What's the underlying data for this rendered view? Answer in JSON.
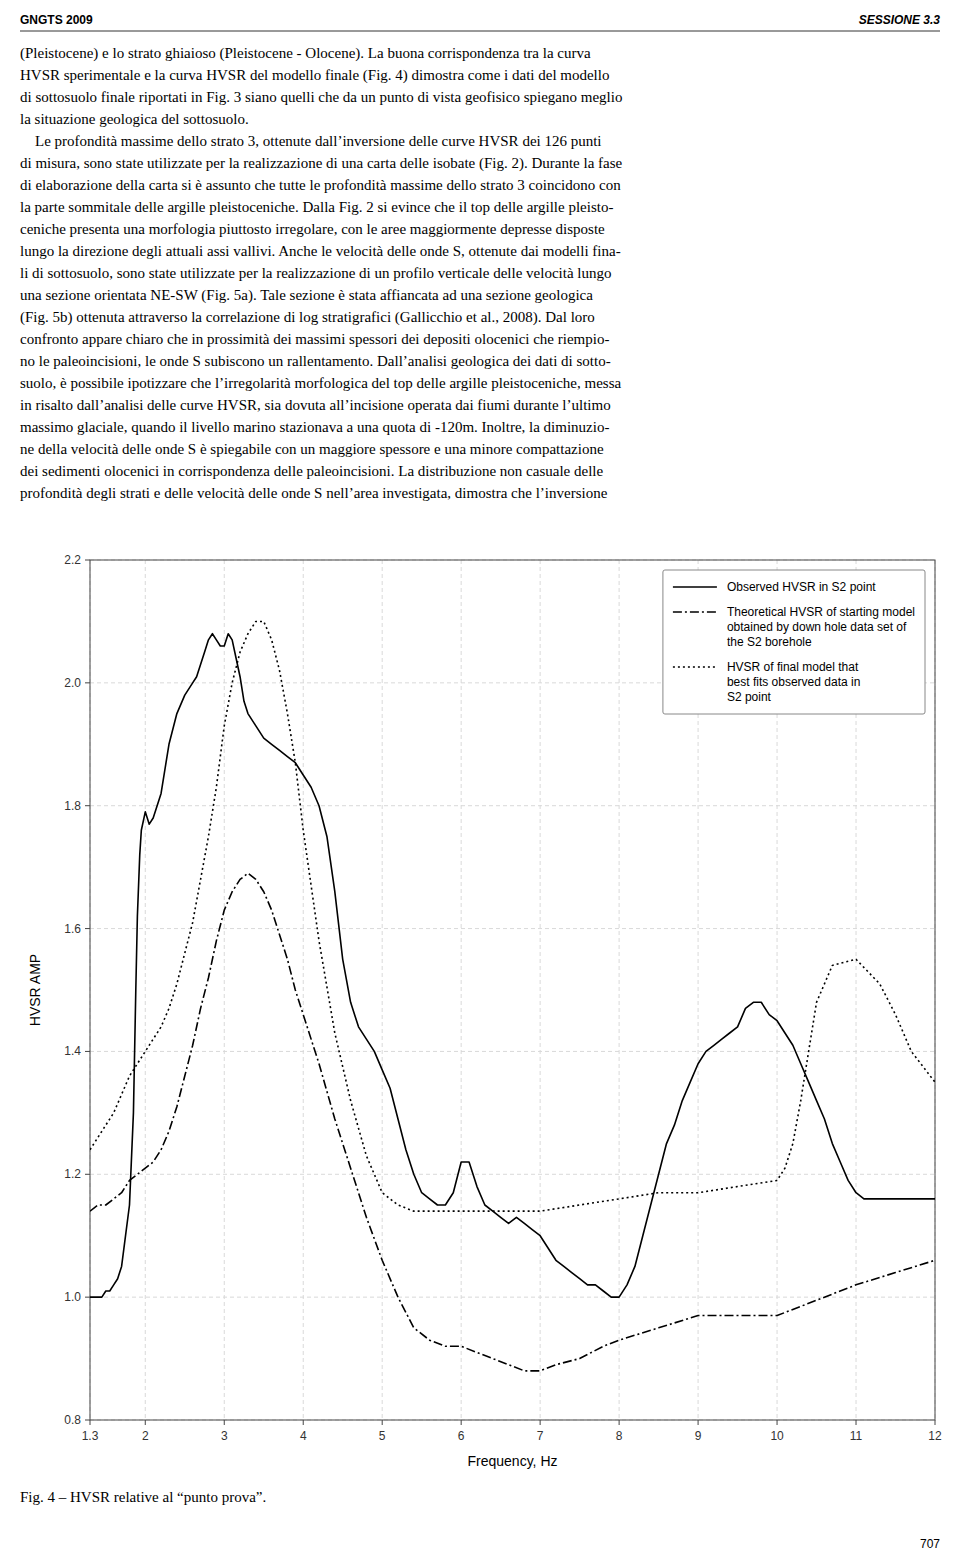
{
  "header": [
    "GNGTS 2009",
    "SESSIONE 3.3"
  ],
  "text_lines": [
    "(Pleistocene) e lo strato ghiaioso (Pleistocene - Olocene). La buona corrispondenza tra la curva",
    "HVSR sperimentale e la curva HVSR del modello finale (Fig. 4) dimostra come i dati del modello",
    "di sottosuolo finale riportati in Fig. 3 siano quelli che da un punto di vista geofisico spiegano meglio",
    "la situazione geologica del sottosuolo.",
    "    Le profondità massime dello strato 3, ottenute dall’inversione delle curve HVSR dei 126 punti",
    "di misura, sono state utilizzate per la realizzazione di una carta delle isobate (Fig. 2). Durante la fase",
    "di elaborazione della carta si è assunto che tutte le profondità massime dello strato 3 coincidono con",
    "la parte sommitale delle argille pleistoceniche. Dalla Fig. 2 si evince che il top delle argille pleisto-",
    "ceniche presenta una morfologia piuttosto irregolare, con le aree maggiormente depresse disposte",
    "lungo la direzione degli attuali assi vallivi. Anche le velocità delle onde S, ottenute dai modelli fina-",
    "li di sottosuolo, sono state utilizzate per la realizzazione di un profilo verticale delle velocità lungo",
    "una sezione orientata NE-SW (Fig. 5a). Tale sezione è stata affiancata ad una sezione geologica",
    "(Fig. 5b) ottenuta attraverso la correlazione di log stratigrafici (Gallicchio et al., 2008). Dal loro",
    "confronto appare chiaro che in prossimità dei massimi spessori dei depositi olocenici che riempio-",
    "no le paleoincisioni, le onde S subiscono un rallentamento. Dall’analisi geologica dei dati di sotto-",
    "suolo, è possibile ipotizzare che l’irregolarità morfologica del top delle argille pleistoceniche, messa",
    "in risalto dall’analisi delle curve HVSR, sia dovuta all’incisione operata dai fiumi durante l’ultimo",
    "massimo glaciale, quando il livello marino stazionava a una quota di -120m. Inoltre, la diminuzio-",
    "ne della velocità delle onde S è spiegabile con un maggiore spessore e una minore compattazione",
    "dei sedimenti olocenici in corrispondenza delle paleoincisioni. La distribuzione non casuale delle",
    "profondità degli strati e delle velocità delle onde S nell’area investigata, dimostra che l’inversione"
  ],
  "caption": "Fig. 4 – HVSR relative al “punto prova”.",
  "page_number": "707",
  "chart_data": {
    "type": "line",
    "xlabel": "Frequency, Hz",
    "ylabel": "HVSR AMP",
    "xlim": [
      1.3,
      12
    ],
    "ylim": [
      0.8,
      2.2
    ],
    "xticks": [
      1.3,
      2,
      3,
      4,
      5,
      6,
      7,
      8,
      9,
      10,
      11,
      12
    ],
    "yticks": [
      0.8,
      {
        "value": 1.0,
        "label": "1.0"
      },
      1.2,
      1.4,
      1.6,
      1.8,
      {
        "value": 2.0,
        "label": "2.0"
      },
      2.2
    ],
    "grid": true,
    "legend": "upper right",
    "series": [
      {
        "name": "Observed HVSR in S2 point",
        "color": "#000000",
        "line_style": "solid",
        "x": [
          1.3,
          1.35,
          1.4,
          1.45,
          1.5,
          1.55,
          1.6,
          1.65,
          1.7,
          1.75,
          1.8,
          1.85,
          1.88,
          1.9,
          1.93,
          1.95,
          2.0,
          2.05,
          2.1,
          2.15,
          2.2,
          2.3,
          2.4,
          2.5,
          2.6,
          2.65,
          2.7,
          2.75,
          2.8,
          2.85,
          2.9,
          2.95,
          3.0,
          3.05,
          3.1,
          3.15,
          3.2,
          3.25,
          3.3,
          3.4,
          3.5,
          3.6,
          3.7,
          3.8,
          3.9,
          4.0,
          4.1,
          4.2,
          4.3,
          4.4,
          4.5,
          4.6,
          4.7,
          4.8,
          4.9,
          5.0,
          5.1,
          5.2,
          5.3,
          5.4,
          5.5,
          5.6,
          5.7,
          5.8,
          5.9,
          6.0,
          6.1,
          6.2,
          6.3,
          6.4,
          6.5,
          6.6,
          6.7,
          6.8,
          6.9,
          7.0,
          7.1,
          7.2,
          7.3,
          7.4,
          7.5,
          7.6,
          7.7,
          7.8,
          7.9,
          8.0,
          8.1,
          8.2,
          8.3,
          8.4,
          8.5,
          8.6,
          8.7,
          8.8,
          8.9,
          9.0,
          9.1,
          9.2,
          9.3,
          9.4,
          9.5,
          9.6,
          9.7,
          9.8,
          9.9,
          10.0,
          10.1,
          10.2,
          10.3,
          10.4,
          10.5,
          10.6,
          10.7,
          10.8,
          10.9,
          11.0,
          11.1,
          11.2,
          11.3,
          11.5,
          11.7,
          12.0
        ],
        "values": [
          1.0,
          1.0,
          1.0,
          1.0,
          1.01,
          1.01,
          1.02,
          1.03,
          1.05,
          1.1,
          1.15,
          1.3,
          1.5,
          1.62,
          1.72,
          1.76,
          1.79,
          1.77,
          1.78,
          1.8,
          1.82,
          1.9,
          1.95,
          1.98,
          2.0,
          2.01,
          2.03,
          2.05,
          2.07,
          2.08,
          2.07,
          2.06,
          2.06,
          2.08,
          2.07,
          2.04,
          2.01,
          1.97,
          1.95,
          1.93,
          1.91,
          1.9,
          1.89,
          1.88,
          1.87,
          1.85,
          1.83,
          1.8,
          1.75,
          1.66,
          1.55,
          1.48,
          1.44,
          1.42,
          1.4,
          1.37,
          1.34,
          1.29,
          1.24,
          1.2,
          1.17,
          1.16,
          1.15,
          1.15,
          1.17,
          1.22,
          1.22,
          1.18,
          1.15,
          1.14,
          1.13,
          1.12,
          1.13,
          1.12,
          1.11,
          1.1,
          1.08,
          1.06,
          1.05,
          1.04,
          1.03,
          1.02,
          1.02,
          1.01,
          1.0,
          1.0,
          1.02,
          1.05,
          1.1,
          1.15,
          1.2,
          1.25,
          1.28,
          1.32,
          1.35,
          1.38,
          1.4,
          1.41,
          1.42,
          1.43,
          1.44,
          1.47,
          1.48,
          1.48,
          1.46,
          1.45,
          1.43,
          1.41,
          1.38,
          1.35,
          1.32,
          1.29,
          1.25,
          1.22,
          1.19,
          1.17,
          1.16,
          1.16,
          1.16,
          1.16,
          1.16,
          1.16
        ]
      },
      {
        "name": "Theoretical HVSR of starting model\nobtained by down hole data set of\nthe S2 borehole",
        "color": "#000000",
        "line_style": "dashdot",
        "x": [
          1.3,
          1.4,
          1.5,
          1.6,
          1.7,
          1.8,
          1.9,
          2.0,
          2.1,
          2.2,
          2.3,
          2.4,
          2.5,
          2.6,
          2.7,
          2.8,
          2.9,
          3.0,
          3.1,
          3.2,
          3.3,
          3.4,
          3.5,
          3.6,
          3.7,
          3.8,
          3.9,
          4.0,
          4.2,
          4.4,
          4.6,
          4.8,
          5.0,
          5.2,
          5.4,
          5.6,
          5.8,
          6.0,
          6.2,
          6.4,
          6.6,
          6.8,
          7.0,
          7.2,
          7.5,
          7.8,
          8.0,
          8.5,
          9.0,
          9.5,
          9.8,
          10.0,
          10.2,
          10.4,
          10.6,
          10.8,
          11.0,
          11.5,
          12.0
        ],
        "values": [
          1.14,
          1.15,
          1.15,
          1.16,
          1.17,
          1.19,
          1.2,
          1.21,
          1.22,
          1.24,
          1.27,
          1.31,
          1.36,
          1.41,
          1.47,
          1.52,
          1.58,
          1.63,
          1.66,
          1.68,
          1.69,
          1.68,
          1.66,
          1.63,
          1.59,
          1.55,
          1.5,
          1.46,
          1.38,
          1.29,
          1.21,
          1.13,
          1.06,
          1.0,
          0.95,
          0.93,
          0.92,
          0.92,
          0.91,
          0.9,
          0.89,
          0.88,
          0.88,
          0.89,
          0.9,
          0.92,
          0.93,
          0.95,
          0.97,
          0.97,
          0.97,
          0.97,
          0.98,
          0.99,
          1.0,
          1.01,
          1.02,
          1.04,
          1.06
        ]
      },
      {
        "name": "HVSR of final model that\nbest fits observed data in\nS2 point",
        "color": "#000000",
        "line_style": "dotted",
        "x": [
          1.3,
          1.4,
          1.5,
          1.6,
          1.7,
          1.8,
          1.9,
          2.0,
          2.1,
          2.2,
          2.3,
          2.4,
          2.5,
          2.6,
          2.7,
          2.8,
          2.9,
          3.0,
          3.1,
          3.2,
          3.3,
          3.4,
          3.5,
          3.6,
          3.7,
          3.8,
          3.9,
          4.0,
          4.2,
          4.4,
          4.6,
          4.8,
          5.0,
          5.2,
          5.4,
          5.6,
          5.8,
          6.0,
          6.5,
          7.0,
          7.5,
          8.0,
          8.5,
          9.0,
          9.5,
          10.0,
          10.1,
          10.2,
          10.3,
          10.4,
          10.5,
          10.7,
          11.0,
          11.3,
          11.5,
          11.7,
          12.0
        ],
        "values": [
          1.24,
          1.26,
          1.28,
          1.3,
          1.33,
          1.36,
          1.38,
          1.4,
          1.42,
          1.44,
          1.47,
          1.51,
          1.56,
          1.61,
          1.68,
          1.75,
          1.83,
          1.93,
          2.0,
          2.05,
          2.08,
          2.1,
          2.1,
          2.07,
          2.02,
          1.95,
          1.87,
          1.76,
          1.58,
          1.43,
          1.32,
          1.23,
          1.17,
          1.15,
          1.14,
          1.14,
          1.14,
          1.14,
          1.14,
          1.14,
          1.15,
          1.16,
          1.17,
          1.17,
          1.18,
          1.19,
          1.21,
          1.25,
          1.32,
          1.4,
          1.48,
          1.54,
          1.55,
          1.51,
          1.46,
          1.4,
          1.35
        ]
      }
    ]
  }
}
